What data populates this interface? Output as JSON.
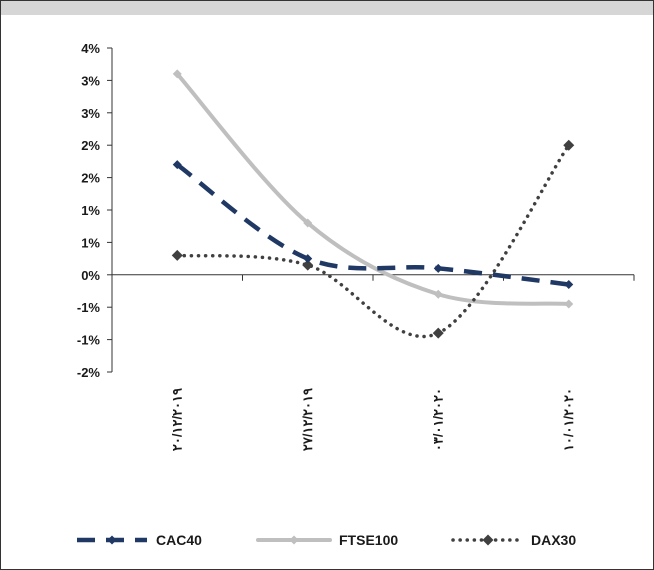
{
  "chart_data": {
    "type": "line",
    "title": "",
    "xlabel": "",
    "ylabel": "",
    "categories": [
      "٢٠/١٢/٢٠١٩",
      "٢٧/١٢/٢٠١٩",
      "٠٣/٠١/٢٠٢٠",
      "١٠/٠١/٢٠٢٠"
    ],
    "y_tick_labels": [
      "4%",
      "3%",
      "3%",
      "2%",
      "2%",
      "1%",
      "1%",
      "0%",
      "-1%",
      "-1%",
      "-2%"
    ],
    "ylim": [
      -1.5,
      3.5
    ],
    "grid": false,
    "legend_position": "bottom",
    "series": [
      {
        "name": "CAC40",
        "values": [
          1.7,
          0.25,
          0.1,
          -0.15
        ],
        "color": "#1f3864",
        "style": "dashed",
        "marker": "diamond"
      },
      {
        "name": "FTSE100",
        "values": [
          3.1,
          0.8,
          -0.3,
          -0.45
        ],
        "color": "#bfbfbf",
        "style": "solid",
        "marker": "diamond"
      },
      {
        "name": "DAX30",
        "values": [
          0.3,
          0.15,
          -0.9,
          2.0
        ],
        "color": "#404040",
        "style": "dotted",
        "marker": "diamond"
      }
    ]
  }
}
